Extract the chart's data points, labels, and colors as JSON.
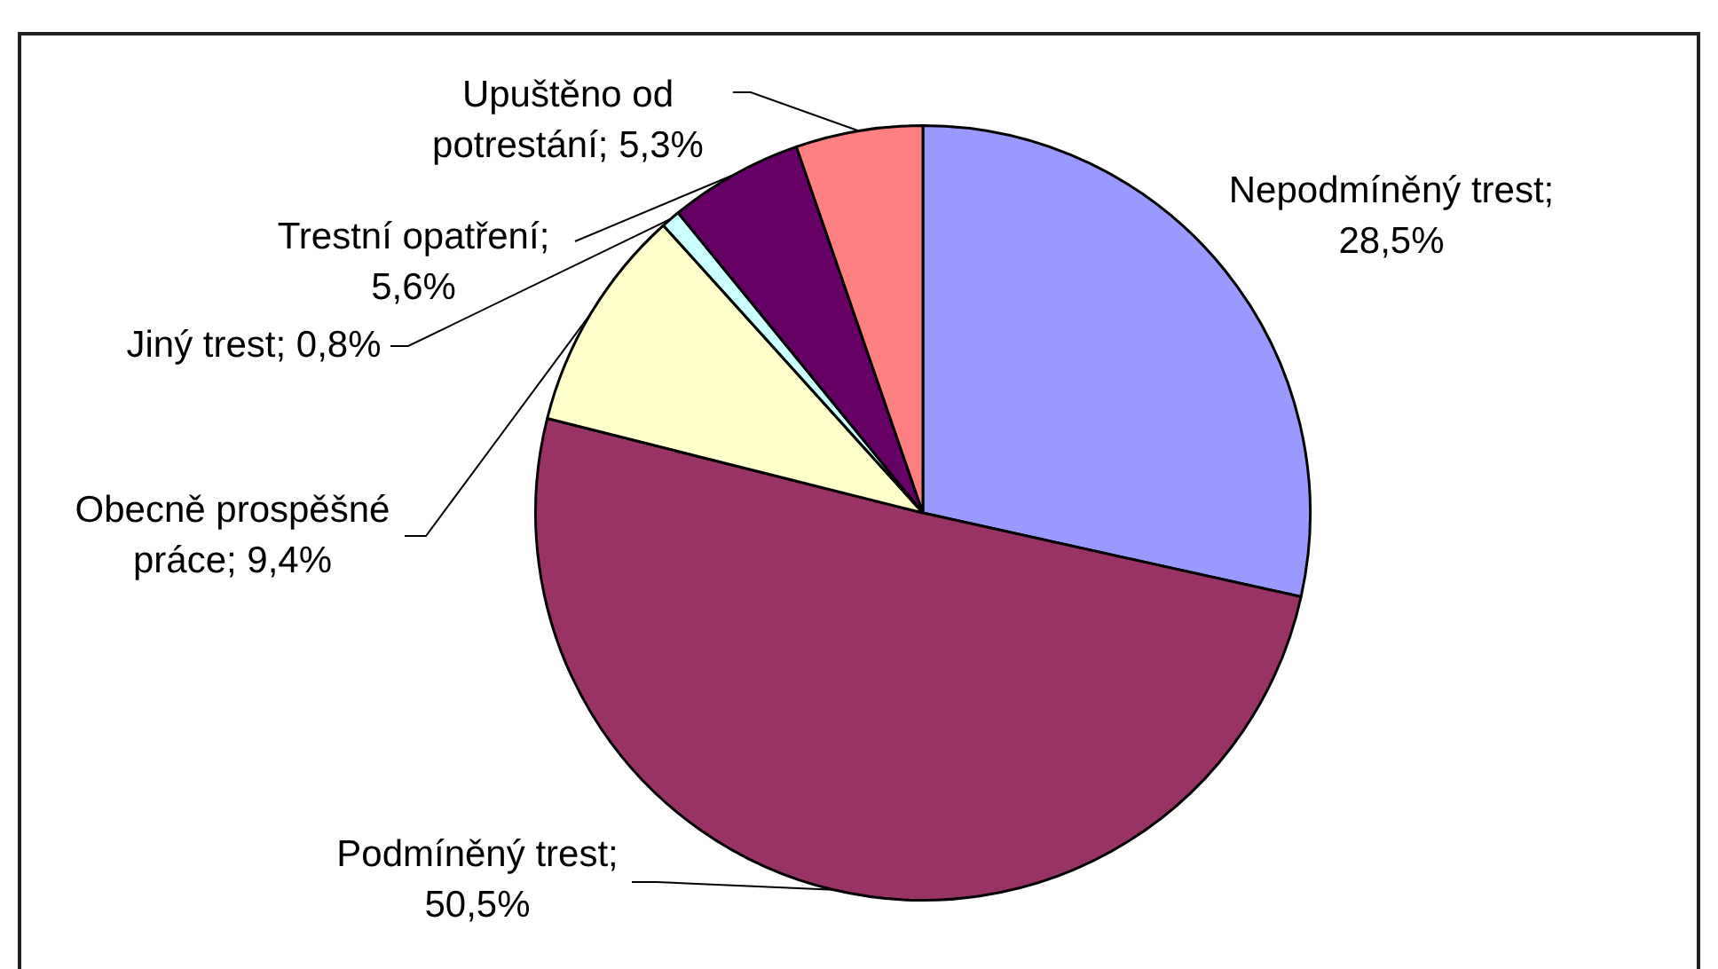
{
  "chart_data": {
    "type": "pie",
    "categories": [
      "Nepodmíněný trest",
      "Podmíněný trest",
      "Obecně prospěšné práce",
      "Jiný trest",
      "Trestní opatření",
      "Upuštěno od potrestání"
    ],
    "values": [
      28.5,
      50.5,
      9.4,
      0.8,
      5.6,
      5.3
    ],
    "colors": [
      "#9999ff",
      "#993366",
      "#ffffcc",
      "#ccffff",
      "#660066",
      "#ff8080"
    ],
    "value_labels": [
      "; 28,5%",
      "; 50,5%",
      "; 9,4%",
      "; 0,8%",
      "; 5,6%",
      "; 5,3%"
    ],
    "legend": false
  }
}
